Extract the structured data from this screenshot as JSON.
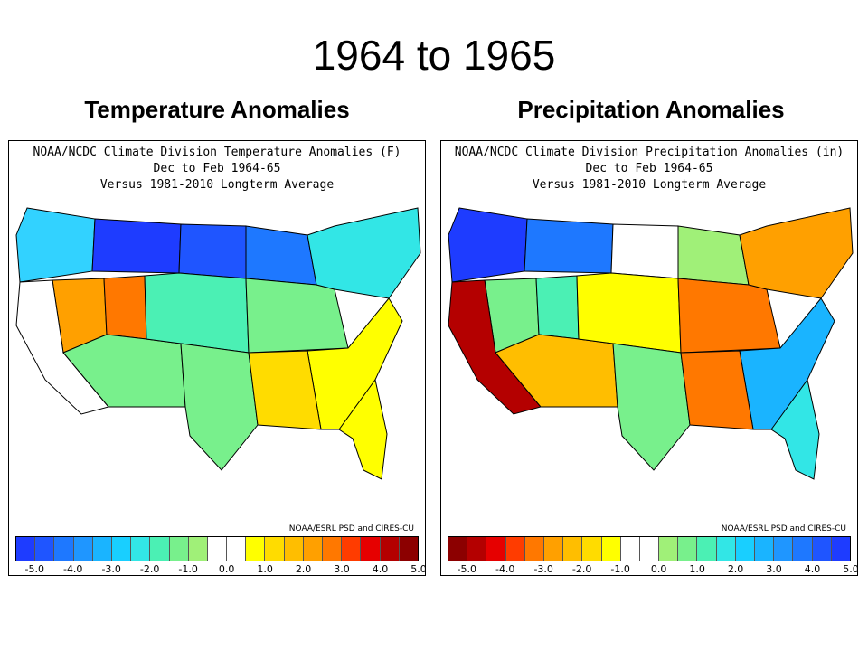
{
  "slide": {
    "title": "1964 to 1965"
  },
  "panels": [
    {
      "id": "left",
      "heading": "Temperature Anomalies",
      "map_title_lines": [
        "NOAA/NCDC Climate Division Temperature Anomalies (F)",
        "Dec to Feb 1964-65",
        "Versus 1981-2010 Longterm Average"
      ],
      "credit": "NOAA/ESRL PSD and CIRES-CU",
      "colorbar": {
        "colors": [
          "#1e3cff",
          "#1f55ff",
          "#1e78ff",
          "#1f96ff",
          "#1ab4ff",
          "#19cfff",
          "#32e6e6",
          "#4bf0b4",
          "#78f08c",
          "#a0f078",
          "#ffffff",
          "#ffffff",
          "#ffff00",
          "#ffdc00",
          "#ffbe00",
          "#ffa000",
          "#ff7800",
          "#ff3c00",
          "#e60000",
          "#b40000",
          "#8c0000"
        ],
        "ticks": [
          "-5.0",
          "-4.0",
          "-3.0",
          "-2.0",
          "-1.0",
          "0.0",
          "1.0",
          "2.0",
          "3.0",
          "4.0",
          "5.0"
        ]
      },
      "regions": [
        {
          "name": "pacific-northwest",
          "color": "#32d2ff",
          "value": -2.5
        },
        {
          "name": "northern-rockies",
          "color": "#1e3cff",
          "value": -5.0
        },
        {
          "name": "northern-plains",
          "color": "#1f55ff",
          "value": -4.5
        },
        {
          "name": "upper-midwest",
          "color": "#1e78ff",
          "value": -4.0
        },
        {
          "name": "great-basin",
          "color": "#ffa000",
          "value": 2.5
        },
        {
          "name": "utah-plateau",
          "color": "#ff7800",
          "value": 3.0
        },
        {
          "name": "california",
          "color": "#ffffff",
          "value": 0.0
        },
        {
          "name": "southwest",
          "color": "#78f08c",
          "value": -1.0
        },
        {
          "name": "central-plains",
          "color": "#4bf0b4",
          "value": -1.5
        },
        {
          "name": "ohio-valley",
          "color": "#78f08c",
          "value": -1.0
        },
        {
          "name": "northeast",
          "color": "#32e6e6",
          "value": -2.0
        },
        {
          "name": "southeast",
          "color": "#ffff00",
          "value": 1.0
        },
        {
          "name": "texas",
          "color": "#78f08c",
          "value": -1.0
        },
        {
          "name": "florida",
          "color": "#ffff00",
          "value": 1.0
        },
        {
          "name": "gulf-coast",
          "color": "#ffdc00",
          "value": 1.5
        }
      ]
    },
    {
      "id": "right",
      "heading": "Precipitation Anomalies",
      "map_title_lines": [
        "NOAA/NCDC Climate Division Precipitation Anomalies (in)",
        "Dec to Feb 1964-65",
        "Versus 1981-2010 Longterm Average"
      ],
      "credit": "NOAA/ESRL PSD and CIRES-CU",
      "colorbar": {
        "colors": [
          "#8c0000",
          "#b40000",
          "#e60000",
          "#ff3c00",
          "#ff7800",
          "#ffa000",
          "#ffbe00",
          "#ffdc00",
          "#ffff00",
          "#ffffff",
          "#ffffff",
          "#a0f078",
          "#78f08c",
          "#4bf0b4",
          "#32e6e6",
          "#19cfff",
          "#1ab4ff",
          "#1f96ff",
          "#1e78ff",
          "#1f55ff",
          "#1e3cff"
        ],
        "ticks": [
          "-5.0",
          "-4.0",
          "-3.0",
          "-2.0",
          "-1.0",
          "0.0",
          "1.0",
          "2.0",
          "3.0",
          "4.0",
          "5.0"
        ]
      },
      "regions": [
        {
          "name": "pacific-northwest",
          "color": "#1e3cff",
          "value": 5.0
        },
        {
          "name": "northern-rockies",
          "color": "#1e78ff",
          "value": 4.0
        },
        {
          "name": "northern-plains",
          "color": "#ffffff",
          "value": 0.0
        },
        {
          "name": "upper-midwest",
          "color": "#a0f078",
          "value": 0.5
        },
        {
          "name": "great-basin",
          "color": "#78f08c",
          "value": 1.0
        },
        {
          "name": "utah-plateau",
          "color": "#4bf0b4",
          "value": 1.5
        },
        {
          "name": "california",
          "color": "#b40000",
          "value": -4.5
        },
        {
          "name": "southwest",
          "color": "#ffbe00",
          "value": -1.5
        },
        {
          "name": "central-plains",
          "color": "#ffff00",
          "value": -0.5
        },
        {
          "name": "ohio-valley",
          "color": "#ff7800",
          "value": -2.5
        },
        {
          "name": "northeast",
          "color": "#ffa000",
          "value": -2.0
        },
        {
          "name": "southeast",
          "color": "#1ab4ff",
          "value": 3.0
        },
        {
          "name": "texas",
          "color": "#78f08c",
          "value": 1.0
        },
        {
          "name": "florida",
          "color": "#32e6e6",
          "value": 2.0
        },
        {
          "name": "gulf-coast",
          "color": "#ff7800",
          "value": -2.5
        }
      ]
    }
  ]
}
